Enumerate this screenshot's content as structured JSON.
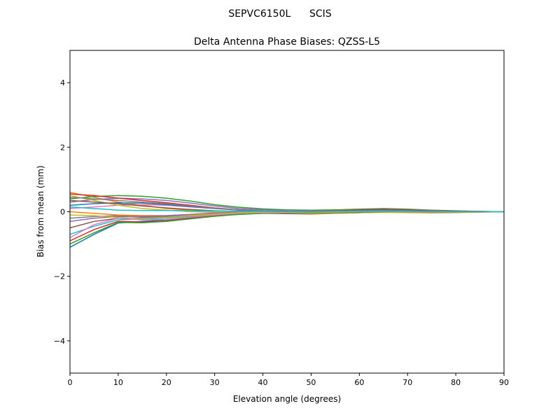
{
  "chart_data": {
    "type": "line",
    "suptitle": "SEPVC6150L      SCIS",
    "title": "Delta Antenna Phase Biases: QZSS-L5",
    "xlabel": "Elevation angle (degrees)",
    "ylabel": "Bias from mean (mm)",
    "xlim": [
      0,
      90
    ],
    "ylim": [
      -5,
      5
    ],
    "xticks": [
      0,
      10,
      20,
      30,
      40,
      50,
      60,
      70,
      80,
      90
    ],
    "yticks": [
      -4,
      -2,
      0,
      2,
      4
    ],
    "ytick_labels": [
      "−4",
      "−2",
      "0",
      "2",
      "4"
    ],
    "grid": false,
    "colors": [
      "#1f77b4",
      "#ff7f0e",
      "#2ca02c",
      "#d62728",
      "#9467bd",
      "#8c564b",
      "#e377c2",
      "#7f7f7f",
      "#bcbd22",
      "#17becf"
    ],
    "x": [
      0,
      5,
      10,
      15,
      20,
      25,
      30,
      35,
      40,
      45,
      50,
      55,
      60,
      65,
      70,
      75,
      80,
      85,
      90
    ],
    "series": [
      {
        "values": [
          -1.1,
          -0.7,
          -0.35,
          -0.3,
          -0.25,
          -0.18,
          -0.12,
          -0.08,
          -0.05,
          -0.04,
          -0.03,
          -0.02,
          0,
          0.02,
          0.01,
          0,
          0,
          0,
          0
        ]
      },
      {
        "values": [
          0.6,
          0.45,
          0.3,
          0.2,
          0.1,
          0.05,
          0.02,
          0,
          -0.02,
          -0.03,
          -0.02,
          0,
          0.02,
          0.03,
          0.02,
          0,
          -0.01,
          0,
          0
        ]
      },
      {
        "values": [
          0.4,
          0.47,
          0.5,
          0.48,
          0.42,
          0.33,
          0.22,
          0.14,
          0.09,
          0.06,
          0.05,
          0.06,
          0.08,
          0.1,
          0.08,
          0.05,
          0.03,
          0.01,
          0
        ]
      },
      {
        "values": [
          -0.9,
          -0.55,
          -0.3,
          -0.32,
          -0.28,
          -0.2,
          -0.12,
          -0.07,
          -0.05,
          -0.06,
          -0.07,
          -0.05,
          -0.03,
          0,
          0,
          -0.02,
          -0.02,
          -0.01,
          0
        ]
      },
      {
        "values": [
          0.3,
          0.38,
          0.42,
          0.4,
          0.35,
          0.27,
          0.18,
          0.1,
          0.06,
          0.04,
          0.03,
          0.04,
          0.06,
          0.07,
          0.06,
          0.04,
          0.02,
          0.01,
          0
        ]
      },
      {
        "values": [
          -0.5,
          -0.3,
          -0.2,
          -0.18,
          -0.15,
          -0.1,
          -0.06,
          -0.03,
          -0.02,
          -0.02,
          -0.03,
          -0.04,
          -0.03,
          -0.01,
          0,
          0,
          -0.01,
          0,
          0
        ]
      },
      {
        "values": [
          0.1,
          0.15,
          0.2,
          0.22,
          0.2,
          0.15,
          0.1,
          0.06,
          0.04,
          0.03,
          0.02,
          0.03,
          0.04,
          0.05,
          0.04,
          0.03,
          0.01,
          0,
          0
        ]
      },
      {
        "values": [
          -0.2,
          -0.15,
          -0.12,
          -0.15,
          -0.14,
          -0.1,
          -0.06,
          -0.03,
          -0.01,
          0,
          0.01,
          0.02,
          0.03,
          0.04,
          0.03,
          0.02,
          0.01,
          0,
          0
        ]
      },
      {
        "values": [
          0.5,
          0.35,
          0.2,
          0.1,
          0.05,
          0,
          -0.02,
          -0.03,
          -0.04,
          -0.05,
          -0.06,
          -0.05,
          -0.03,
          -0.02,
          -0.03,
          -0.04,
          -0.03,
          -0.01,
          0
        ]
      },
      {
        "values": [
          -0.7,
          -0.45,
          -0.25,
          -0.22,
          -0.2,
          -0.14,
          -0.08,
          -0.04,
          -0.02,
          -0.01,
          0,
          0.01,
          0.02,
          0.01,
          0,
          -0.01,
          -0.01,
          0,
          0
        ]
      },
      {
        "values": [
          0.2,
          0.25,
          0.28,
          0.27,
          0.22,
          0.16,
          0.1,
          0.05,
          0.02,
          0.01,
          0.01,
          0.02,
          0.03,
          0.03,
          0.02,
          0.01,
          0,
          0,
          0
        ]
      },
      {
        "values": [
          0,
          -0.05,
          -0.1,
          -0.12,
          -0.12,
          -0.09,
          -0.05,
          -0.02,
          0,
          0.01,
          0.02,
          0.04,
          0.05,
          0.05,
          0.04,
          0.02,
          0.01,
          0,
          0
        ]
      },
      {
        "values": [
          -1.0,
          -0.65,
          -0.33,
          -0.34,
          -0.3,
          -0.22,
          -0.14,
          -0.08,
          -0.05,
          -0.05,
          -0.04,
          -0.03,
          -0.02,
          0,
          0.01,
          0,
          0,
          0,
          0
        ]
      },
      {
        "values": [
          0.55,
          0.5,
          0.42,
          0.35,
          0.28,
          0.2,
          0.12,
          0.06,
          0.03,
          0.02,
          0.02,
          0.03,
          0.05,
          0.06,
          0.05,
          0.03,
          0.02,
          0.01,
          0
        ]
      },
      {
        "values": [
          -0.3,
          -0.2,
          -0.15,
          -0.14,
          -0.12,
          -0.08,
          -0.04,
          -0.02,
          -0.01,
          -0.02,
          -0.02,
          -0.01,
          0,
          0.01,
          0,
          -0.01,
          -0.01,
          0,
          0
        ]
      },
      {
        "values": [
          0.35,
          0.3,
          0.25,
          0.18,
          0.12,
          0.07,
          0.03,
          0.01,
          0,
          -0.01,
          -0.01,
          0,
          0.02,
          0.03,
          0.02,
          0.01,
          0,
          0,
          0
        ]
      },
      {
        "values": [
          -0.8,
          -0.4,
          -0.2,
          -0.25,
          -0.24,
          -0.17,
          -0.1,
          -0.05,
          -0.03,
          -0.03,
          -0.02,
          -0.01,
          0,
          0.01,
          0,
          -0.01,
          -0.01,
          0,
          0
        ]
      },
      {
        "values": [
          0.45,
          0.4,
          0.35,
          0.3,
          0.25,
          0.18,
          0.11,
          0.06,
          0.03,
          0.02,
          0.01,
          0.02,
          0.03,
          0.04,
          0.03,
          0.02,
          0.01,
          0,
          0
        ]
      },
      {
        "values": [
          -0.1,
          -0.12,
          -0.18,
          -0.2,
          -0.18,
          -0.12,
          -0.07,
          -0.03,
          -0.01,
          -0.01,
          -0.01,
          0,
          0.01,
          0.02,
          0.01,
          0,
          0,
          0,
          0
        ]
      },
      {
        "values": [
          0.15,
          0.1,
          0.05,
          0.04,
          0.04,
          0.03,
          0.02,
          0.01,
          0.01,
          0,
          0,
          0.01,
          0.02,
          0.02,
          0.01,
          0,
          0,
          0,
          0
        ]
      }
    ]
  }
}
